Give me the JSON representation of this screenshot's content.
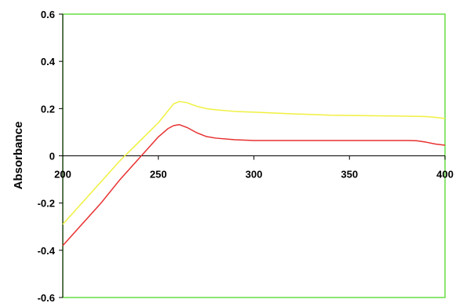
{
  "chart_data": {
    "type": "line",
    "title": "",
    "xlabel": "",
    "ylabel": "Absorbance",
    "xlim": [
      200,
      400
    ],
    "ylim": [
      -0.6,
      0.6
    ],
    "x_ticks": [
      200,
      250,
      300,
      350,
      400
    ],
    "y_ticks": [
      -0.6,
      -0.4,
      -0.2,
      0,
      0.2,
      0.4,
      0.6
    ],
    "x_tick_labels": [
      "200",
      "250",
      "300",
      "350",
      "400"
    ],
    "y_tick_labels": [
      "-0.6",
      "-0.4",
      "-0.2",
      "0",
      "0.2",
      "0.4",
      "0.6"
    ],
    "grid": false,
    "legend": "none",
    "plot_border_color": "#66dd44",
    "series": [
      {
        "color": "#f0f040",
        "x": [
          200,
          210,
          220,
          230,
          240,
          250,
          255,
          258,
          261,
          265,
          270,
          275,
          280,
          290,
          300,
          320,
          340,
          360,
          380,
          390,
          395,
          400
        ],
        "y": [
          -0.29,
          -0.2,
          -0.11,
          -0.02,
          0.06,
          0.14,
          0.19,
          0.22,
          0.23,
          0.225,
          0.21,
          0.2,
          0.195,
          0.188,
          0.185,
          0.178,
          0.172,
          0.17,
          0.168,
          0.166,
          0.163,
          0.158
        ]
      },
      {
        "color": "#e83030",
        "x": [
          200,
          210,
          220,
          230,
          240,
          250,
          255,
          258,
          261,
          265,
          270,
          275,
          280,
          290,
          300,
          320,
          340,
          360,
          380,
          385,
          390,
          395,
          400
        ],
        "y": [
          -0.38,
          -0.29,
          -0.2,
          -0.1,
          -0.01,
          0.08,
          0.115,
          0.128,
          0.132,
          0.12,
          0.098,
          0.082,
          0.075,
          0.068,
          0.065,
          0.065,
          0.065,
          0.065,
          0.065,
          0.064,
          0.058,
          0.05,
          0.045
        ]
      }
    ]
  }
}
